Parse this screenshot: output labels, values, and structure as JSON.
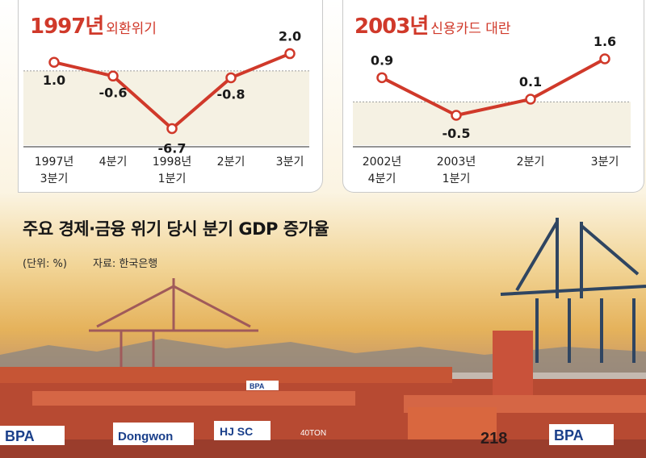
{
  "headline": "주요 경제·금융 위기 당시 분기 GDP 증가율",
  "unit": "(단위: %)",
  "source": "자료: 한국은행",
  "colors": {
    "accent": "#d0392a",
    "band": "#f5f1e3",
    "zero_line": "#9b9b9b",
    "text": "#1a1a1a"
  },
  "background_scene": {
    "crane_signs": [
      "BPA",
      "Dongwon",
      "HJ SC",
      "BPA",
      "218",
      "BPA",
      "40TON"
    ]
  },
  "chart_data": [
    {
      "type": "line",
      "title_year": "1997년",
      "title_event": "외환위기",
      "categories": [
        [
          "1997년",
          "3분기"
        ],
        [
          "4분기"
        ],
        [
          "1998년",
          "1분기"
        ],
        [
          "2분기"
        ],
        [
          "3분기"
        ]
      ],
      "values": [
        1.0,
        -0.6,
        -6.7,
        -0.8,
        2.0
      ],
      "value_labels": [
        "1.0",
        "-0.6",
        "-6.7",
        "-0.8",
        "2.0"
      ],
      "reference_line": 0,
      "ylim": [
        -7.5,
        2.8
      ]
    },
    {
      "type": "line",
      "title_year": "2003년",
      "title_event": "신용카드 대란",
      "categories": [
        [
          "2002년",
          "4분기"
        ],
        [
          "2003년",
          "1분기"
        ],
        [
          "2분기"
        ],
        [
          "3분기"
        ]
      ],
      "values": [
        0.9,
        -0.5,
        0.1,
        1.6
      ],
      "value_labels": [
        "0.9",
        "-0.5",
        "0.1",
        "1.6"
      ],
      "reference_line": 0,
      "ylim": [
        -1.25,
        2.05
      ]
    }
  ]
}
